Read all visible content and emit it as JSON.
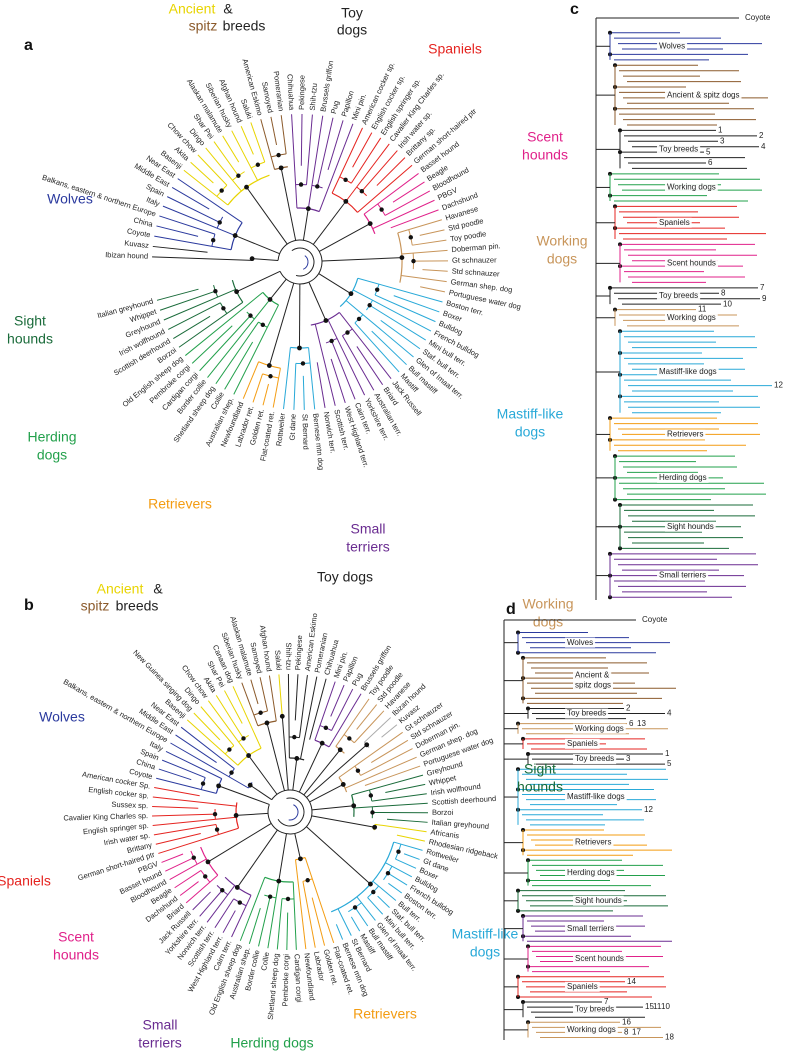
{
  "panel_a": {
    "letter": "a",
    "clade_labels": [
      {
        "lines": [
          "Ancient"
        ],
        "color": "#e8d400"
      },
      {
        "lines": [
          "&"
        ],
        "color": "#222222"
      },
      {
        "lines": [
          "spitz"
        ],
        "color": "#8b5a2b"
      },
      {
        "lines": [
          "breeds"
        ],
        "color": "#222222"
      },
      {
        "lines": [
          "Toy",
          "dogs"
        ],
        "color": "#222222"
      },
      {
        "lines": [
          "Spaniels"
        ],
        "color": "#e52420"
      },
      {
        "lines": [
          "Scent",
          "hounds"
        ],
        "color": "#e0218a"
      },
      {
        "lines": [
          "Working",
          "dogs"
        ],
        "color": "#c8955a"
      },
      {
        "lines": [
          "Mastiff-like",
          "dogs"
        ],
        "color": "#29a9d8"
      },
      {
        "lines": [
          "Small",
          "terriers"
        ],
        "color": "#6a2c91"
      },
      {
        "lines": [
          "Retrievers"
        ],
        "color": "#f39c12"
      },
      {
        "lines": [
          "Herding",
          "dogs"
        ],
        "color": "#22a04b"
      },
      {
        "lines": [
          "Sight",
          "hounds"
        ],
        "color": "#1a6b3a"
      },
      {
        "lines": [
          "Wolves"
        ],
        "color": "#2b3a9e"
      }
    ],
    "groups": [
      {
        "color": "#222222",
        "breeds": [
          "Ibizan hound",
          "Kuvasz"
        ]
      },
      {
        "color": "#2b3a9e",
        "breeds": [
          "Coyote",
          "China",
          "Balkans, eastern & northern Europe",
          "Italy",
          "Spain",
          "Middle East",
          "Near East"
        ]
      },
      {
        "color": "#e8d400",
        "breeds": [
          "Basenji",
          "Akita",
          "Chow chow",
          "Dingo",
          "Shar Pei",
          "Alaskan malamute",
          "Siberian husky",
          "Afghan hound",
          "Saluki"
        ]
      },
      {
        "color": "#8b5a2b",
        "breeds": [
          "American Eskimo",
          "Samoyed",
          "Pomeranian"
        ]
      },
      {
        "color": "#6a2c91",
        "breeds": [
          "Chihuahua",
          "Pekingese",
          "Shih-tzu",
          "Brussels griffon",
          "Pug",
          "Papillon",
          "Mini pin."
        ]
      },
      {
        "color": "#e52420",
        "breeds": [
          "American cocker sp.",
          "English cocker sp.",
          "English springer sp.",
          "Cavalier King Charles sp.",
          "Irish water sp.",
          "Brittany sp.",
          "German short-haired ptr"
        ]
      },
      {
        "color": "#e0218a",
        "breeds": [
          "Basset hound",
          "Beagle",
          "Bloodhound",
          "PBGV",
          "Dachshund"
        ]
      },
      {
        "color": "#c8955a",
        "breeds": [
          "Havanese",
          "Std poodle",
          "Toy poodle",
          "Doberman pin.",
          "Gt schnauzer",
          "Std schnauzer",
          "German shep. dog",
          "Portuguese water dog"
        ]
      },
      {
        "color": "#29a9d8",
        "breeds": [
          "Boston terr.",
          "Boxer",
          "Bulldog",
          "French bulldog",
          "Mini bull terr.",
          "Staf. bull terr.",
          "Glen of Imaal terr.",
          "Bull mastiff",
          "Mastiff"
        ]
      },
      {
        "color": "#6a2c91",
        "breeds": [
          "Jack Russell",
          "Briard",
          "Australian terr.",
          "Yorkshire terr.",
          "Cairn terr.",
          "West Highland terr.",
          "Scottish terr.",
          "Norwich terr."
        ]
      },
      {
        "color": "#29a9d8",
        "breeds": [
          "Bernese mtn dog",
          "St Bernard",
          "Gt dane",
          "Rottweiler"
        ]
      },
      {
        "color": "#f39c12",
        "breeds": [
          "Flat-coated ret.",
          "Golden ret.",
          "Labrador ret.",
          "Newfoundland"
        ]
      },
      {
        "color": "#22a04b",
        "breeds": [
          "Australian shep.",
          "Collie",
          "Shetland sheep dog",
          "Border collie",
          "Cardigan corgi",
          "Pembroke corgi",
          "Old English sheep dog"
        ]
      },
      {
        "color": "#1a6b3a",
        "breeds": [
          "Borzoi",
          "Scottish deerhound",
          "Irish wolfhound",
          "Greyhound",
          "Whippet",
          "Italian greyhound"
        ]
      }
    ]
  },
  "panel_b": {
    "letter": "b",
    "clade_labels": [
      {
        "lines": [
          "Ancient"
        ],
        "color": "#e8d400"
      },
      {
        "lines": [
          "&"
        ],
        "color": "#222222"
      },
      {
        "lines": [
          "spitz"
        ],
        "color": "#8b5a2b"
      },
      {
        "lines": [
          "breeds"
        ],
        "color": "#222222"
      },
      {
        "lines": [
          "Toy dogs"
        ],
        "color": "#222222"
      },
      {
        "lines": [
          "Working",
          "dogs"
        ],
        "color": "#c8955a"
      },
      {
        "lines": [
          "Wolves"
        ],
        "color": "#2b3a9e"
      },
      {
        "lines": [
          "Spaniels"
        ],
        "color": "#e52420"
      },
      {
        "lines": [
          "Scent",
          "hounds"
        ],
        "color": "#e0218a"
      },
      {
        "lines": [
          "Small",
          "terriers"
        ],
        "color": "#6a2c91"
      },
      {
        "lines": [
          "Herding dogs"
        ],
        "color": "#22a04b"
      },
      {
        "lines": [
          "Retrievers"
        ],
        "color": "#f39c12"
      },
      {
        "lines": [
          "Mastiff-like",
          "dogs"
        ],
        "color": "#29a9d8"
      }
    ],
    "groups": [
      {
        "color": "#2b3a9e",
        "breeds": [
          "Balkans, eastern & northern Europe",
          "Middle East",
          "Near East"
        ]
      },
      {
        "color": "#e8d400",
        "breeds": [
          "Basenji",
          "New Guinea singing dog",
          "Dingo",
          "Chow chow",
          "Akita",
          "Shar Pei",
          "Canaan dog"
        ]
      },
      {
        "color": "#8b5a2b",
        "breeds": [
          "Siberian husky",
          "Alaskan malamute",
          "Samoyed",
          "Afghan hound"
        ]
      },
      {
        "color": "#e8d400",
        "breeds": [
          "Saluki"
        ]
      },
      {
        "color": "#222222",
        "breeds": [
          "Shih-tzu",
          "Pekingese",
          "American Eskimo",
          "Pomeranian",
          "Chihuahua"
        ]
      },
      {
        "color": "#6a2c91",
        "breeds": [
          "Mini pin.",
          "Papillon",
          "Pug",
          "Brussels griffon"
        ]
      },
      {
        "color": "#c8955a",
        "breeds": [
          "Toy poodle",
          "Std poodle",
          "Havanese"
        ]
      },
      {
        "color": "#aaaaaa",
        "breeds": [
          "Ibizan hound",
          "Kuvasz"
        ]
      },
      {
        "color": "#c8955a",
        "breeds": [
          "Gt schnauzer",
          "Std schnauzer",
          "Doberman pin.",
          "German shep. dog",
          "Portuguese water dog"
        ]
      },
      {
        "color": "#1a6b3a",
        "breeds": [
          "Greyhound",
          "Whippet",
          "Irish wolfhound",
          "Scottish deerhound",
          "Borzoi",
          "Italian greyhound"
        ]
      },
      {
        "color": "#e8d400",
        "breeds": [
          "Africanis",
          "Rhodesian ridgeback"
        ]
      },
      {
        "color": "#29a9d8",
        "breeds": [
          "Rottweiler",
          "Gt dane",
          "Boxer",
          "Bulldog",
          "French bulldog",
          "Boston terr.",
          "Bull terr.",
          "Staf. bull terr.",
          "Mini bull terr.",
          "Glen of Imaal terr.",
          "Bull mastiff",
          "Mastiff",
          "St Bernard",
          "Bernese mtn dog"
        ]
      },
      {
        "color": "#f39c12",
        "breeds": [
          "Flat-coated ret.",
          "Golden ret.",
          "Labrador",
          "Newfoundland"
        ]
      },
      {
        "color": "#22a04b",
        "breeds": [
          "Cardigan corgi",
          "Pembroke corgi",
          "Shetland sheep dog",
          "Collie",
          "Border collie",
          "Australian shep.",
          "Old English sheep dog"
        ]
      },
      {
        "color": "#6a2c91",
        "breeds": [
          "Cairn terr.",
          "West Highland terr.",
          "Scottish terr.",
          "Norwich terr.",
          "Yorkshire terr.",
          "Jack Russell"
        ]
      },
      {
        "color": "#e0218a",
        "breeds": [
          "Briard",
          "Dachshund",
          "Beagle",
          "Bloodhound",
          "Basset hound",
          "PBGV"
        ]
      },
      {
        "color": "#e52420",
        "breeds": [
          "German short-haired ptr",
          "Brittany",
          "Irish water sp.",
          "English springer sp.",
          "Cavalier King Charles sp.",
          "Sussex sp.",
          "English cocker sp.",
          "American cocker Sp."
        ]
      },
      {
        "color": "#2b3a9e",
        "breeds": [
          "Coyote",
          "China",
          "Spain",
          "Italy"
        ]
      }
    ]
  },
  "panel_c": {
    "letter": "c",
    "coyote": "Coyote",
    "clades": [
      {
        "lines": [
          "Wolves"
        ],
        "color": "#2b3a9e"
      },
      {
        "lines": [
          "Ancient & spitz dogs"
        ],
        "color": "#8b5a2b"
      },
      {
        "lines": [
          "Toy breeds"
        ],
        "color": "#222222"
      },
      {
        "lines": [
          "Working dogs"
        ],
        "color": "#22a04b"
      },
      {
        "lines": [
          "Spaniels"
        ],
        "color": "#e52420"
      },
      {
        "lines": [
          "Scent hounds"
        ],
        "color": "#e0218a"
      },
      {
        "lines": [
          "Toy breeds"
        ],
        "color": "#222222"
      },
      {
        "lines": [
          "Working dogs"
        ],
        "color": "#c8955a"
      },
      {
        "lines": [
          "Mastiff-like dogs"
        ],
        "color": "#29a9d8"
      },
      {
        "lines": [
          "Retrievers"
        ],
        "color": "#f39c12"
      },
      {
        "lines": [
          "Herding dogs"
        ],
        "color": "#22a04b"
      },
      {
        "lines": [
          "Sight hounds"
        ],
        "color": "#1a6b3a"
      },
      {
        "lines": [
          "Small terriers"
        ],
        "color": "#6a2c91"
      }
    ],
    "numbers": [
      1,
      2,
      3,
      4,
      5,
      6,
      7,
      8,
      9,
      10,
      11,
      12
    ]
  },
  "panel_d": {
    "letter": "d",
    "coyote": "Coyote",
    "side_label": {
      "lines": [
        "Sight",
        "hounds"
      ],
      "color": "#1a6b3a"
    },
    "clades": [
      {
        "lines": [
          "Wolves"
        ],
        "color": "#2b3a9e"
      },
      {
        "lines": [
          "Ancient &",
          "spitz dogs"
        ],
        "color": "#8b5a2b"
      },
      {
        "lines": [
          "Toy breeds"
        ],
        "color": "#222222"
      },
      {
        "lines": [
          "Working dogs"
        ],
        "color": "#c8955a"
      },
      {
        "lines": [
          "Spaniels"
        ],
        "color": "#e52420"
      },
      {
        "lines": [
          "Toy breeds"
        ],
        "color": "#222222"
      },
      {
        "lines": [
          "Mastiff-like dogs"
        ],
        "color": "#29a9d8"
      },
      {
        "lines": [
          "Retrievers"
        ],
        "color": "#f39c12"
      },
      {
        "lines": [
          "Herding dogs"
        ],
        "color": "#22a04b"
      },
      {
        "lines": [
          "Sight hounds"
        ],
        "color": "#1a6b3a"
      },
      {
        "lines": [
          "Small terriers"
        ],
        "color": "#6a2c91"
      },
      {
        "lines": [
          "Scent hounds"
        ],
        "color": "#e0218a"
      },
      {
        "lines": [
          "Spaniels"
        ],
        "color": "#e52420"
      },
      {
        "lines": [
          "Toy breeds"
        ],
        "color": "#222222"
      },
      {
        "lines": [
          "Working dogs"
        ],
        "color": "#c8955a"
      }
    ],
    "numbers": [
      2,
      4,
      6,
      13,
      1,
      3,
      5,
      12,
      14,
      7,
      15,
      11,
      10,
      16,
      8,
      17,
      18
    ]
  }
}
